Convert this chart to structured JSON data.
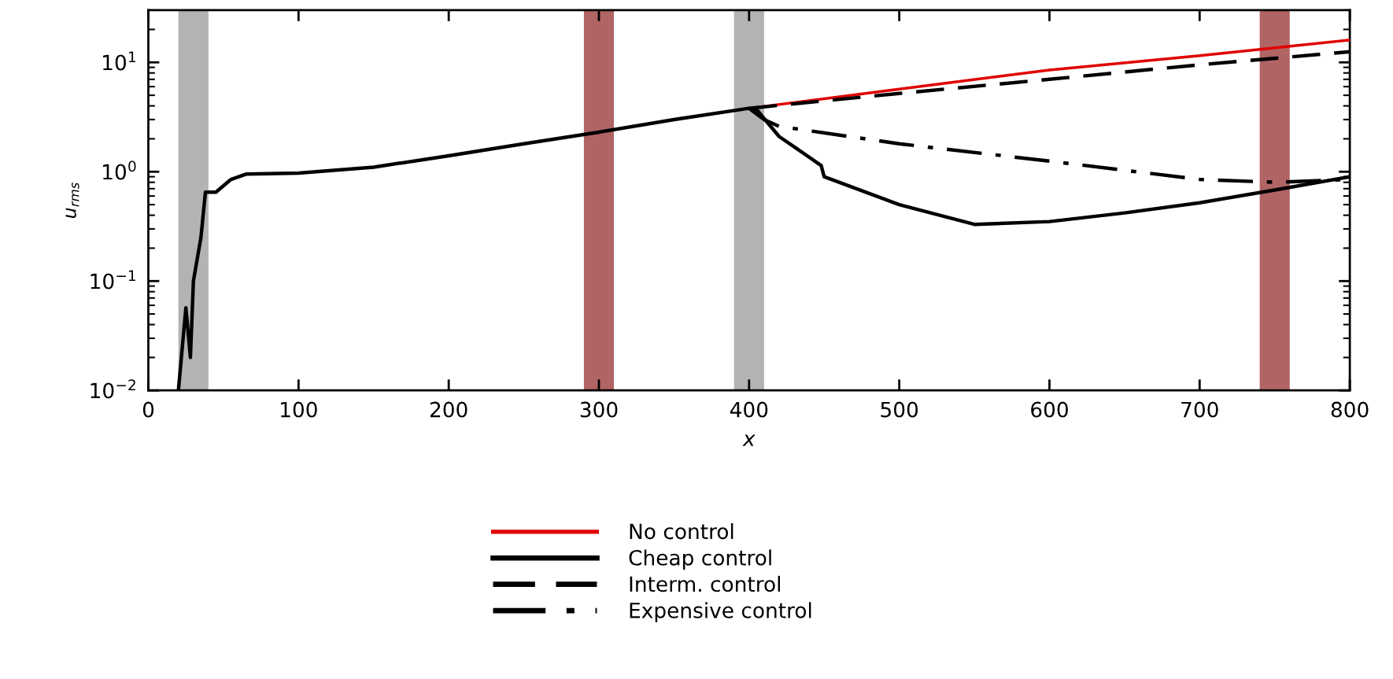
{
  "chart_data": {
    "type": "line",
    "xlabel": "x",
    "ylabel": "u$_{rms}$",
    "log": "y",
    "xlim": [
      0,
      800
    ],
    "xticks": [
      0,
      100,
      200,
      300,
      400,
      500,
      600,
      700,
      800
    ],
    "ylim": [
      0.01,
      30
    ],
    "yticks": [
      {
        "value": 0.01,
        "label": "10$^{−2}$"
      },
      {
        "value": 0.1,
        "label": "10$^{−1}$"
      },
      {
        "value": 1,
        "label": "10$^{0}$"
      },
      {
        "value": 10,
        "label": "10$^{1}$"
      }
    ],
    "grid": false,
    "legend": "bottom",
    "bands": [
      {
        "axis": "x",
        "from": 20,
        "to": 40,
        "color": "#b3b3b3"
      },
      {
        "axis": "x",
        "from": 290,
        "to": 310,
        "color": "#b06464"
      },
      {
        "axis": "x",
        "from": 390,
        "to": 410,
        "color": "#b3b3b3"
      },
      {
        "axis": "x",
        "from": 740,
        "to": 760,
        "color": "#b06464"
      }
    ],
    "series": [
      {
        "name": "No control",
        "color": "#e00000",
        "line_style": "solid",
        "x": [
          400,
          500,
          600,
          700,
          800
        ],
        "values": [
          3.8,
          5.7,
          8.5,
          11.5,
          16
        ]
      },
      {
        "name": "Cheap control",
        "color": "#000000",
        "line_style": "solid",
        "x": [
          20,
          25,
          28,
          30,
          35,
          38,
          45,
          55,
          65,
          100,
          150,
          200,
          250,
          300,
          350,
          400,
          405,
          420,
          448,
          450,
          500,
          550,
          600,
          650,
          700,
          750,
          800
        ],
        "values": [
          0.01,
          0.057,
          0.02,
          0.1,
          0.25,
          0.65,
          0.65,
          0.85,
          0.95,
          0.97,
          1.1,
          1.4,
          1.8,
          2.3,
          3.0,
          3.8,
          3.7,
          2.1,
          1.14,
          0.9,
          0.5,
          0.33,
          0.35,
          0.42,
          0.52,
          0.68,
          0.9
        ]
      },
      {
        "name": "Interm. control",
        "color": "#000000",
        "line_style": "dashed",
        "x": [
          400,
          500,
          600,
          700,
          800
        ],
        "values": [
          3.8,
          5.2,
          7.0,
          9.5,
          12.5
        ]
      },
      {
        "name": "Expensive control",
        "color": "#000000",
        "line_style": "dashdot",
        "x": [
          400,
          410,
          420,
          500,
          600,
          700,
          750,
          800
        ],
        "values": [
          3.8,
          3.0,
          2.6,
          1.8,
          1.25,
          0.85,
          0.8,
          0.85
        ]
      }
    ]
  }
}
